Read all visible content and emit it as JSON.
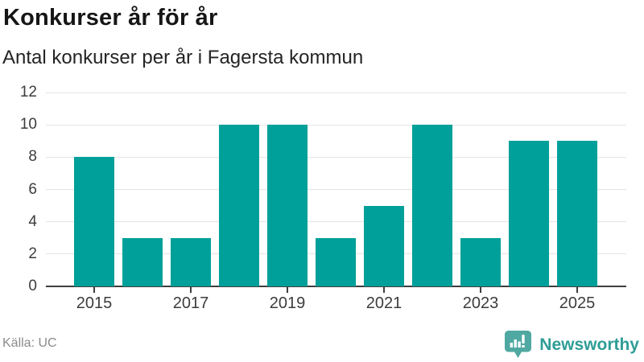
{
  "chart_data": {
    "type": "bar",
    "title": "Konkurser år för år",
    "subtitle": "Antal konkurser per år i Fagersta kommun",
    "categories": [
      "2015",
      "2016",
      "2017",
      "2018",
      "2019",
      "2020",
      "2021",
      "2022",
      "2023",
      "2024",
      "2025"
    ],
    "values": [
      8,
      3,
      3,
      10,
      10,
      3,
      5,
      10,
      3,
      9,
      9
    ],
    "xlabel": "",
    "ylabel": "",
    "ylim": [
      0,
      12
    ],
    "yticks": [
      0,
      2,
      4,
      6,
      8,
      10,
      12
    ],
    "xtick_labels": [
      "2015",
      "2017",
      "2019",
      "2021",
      "2023",
      "2025"
    ],
    "xtick_indices": [
      0,
      2,
      4,
      6,
      8,
      10
    ],
    "grid": "horizontal-only",
    "legend": "none",
    "bar_color": "#00A09A",
    "gridline_color": "#e4e4e4",
    "axis_color": "#3e3e3e",
    "tick_label_color": "#3c3c3c"
  },
  "footer": {
    "source": "Källa: UC",
    "brand": "Newsworthy",
    "brand_color": "#2E9D96",
    "icon_color": "#4FA8A1",
    "source_color": "#8b8b8b"
  }
}
